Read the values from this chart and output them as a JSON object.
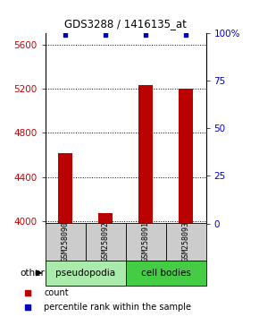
{
  "title": "GDS3288 / 1416135_at",
  "samples": [
    "GSM258090",
    "GSM258092",
    "GSM258091",
    "GSM258093"
  ],
  "groups": [
    "pseudopodia",
    "pseudopodia",
    "cell bodies",
    "cell bodies"
  ],
  "bar_values": [
    4620,
    4075,
    5235,
    5200
  ],
  "percentile_values": [
    99,
    99,
    99,
    99
  ],
  "bar_color": "#bb0000",
  "dot_color": "#0000bb",
  "ylim_left": [
    3980,
    5700
  ],
  "yticks_left": [
    4000,
    4400,
    4800,
    5200,
    5600
  ],
  "ylim_right": [
    0,
    100
  ],
  "yticks_right": [
    0,
    25,
    50,
    75,
    100
  ],
  "pseudopodia_color": "#aaeaaa",
  "cell_bodies_color": "#44cc44",
  "label_color_left": "#cc0000",
  "label_color_right": "#0000cc",
  "bar_width": 0.35,
  "bar_bottom": 3980,
  "background_color": "#ffffff",
  "other_label": "other",
  "legend_count_label": "count",
  "legend_pct_label": "percentile rank within the sample"
}
